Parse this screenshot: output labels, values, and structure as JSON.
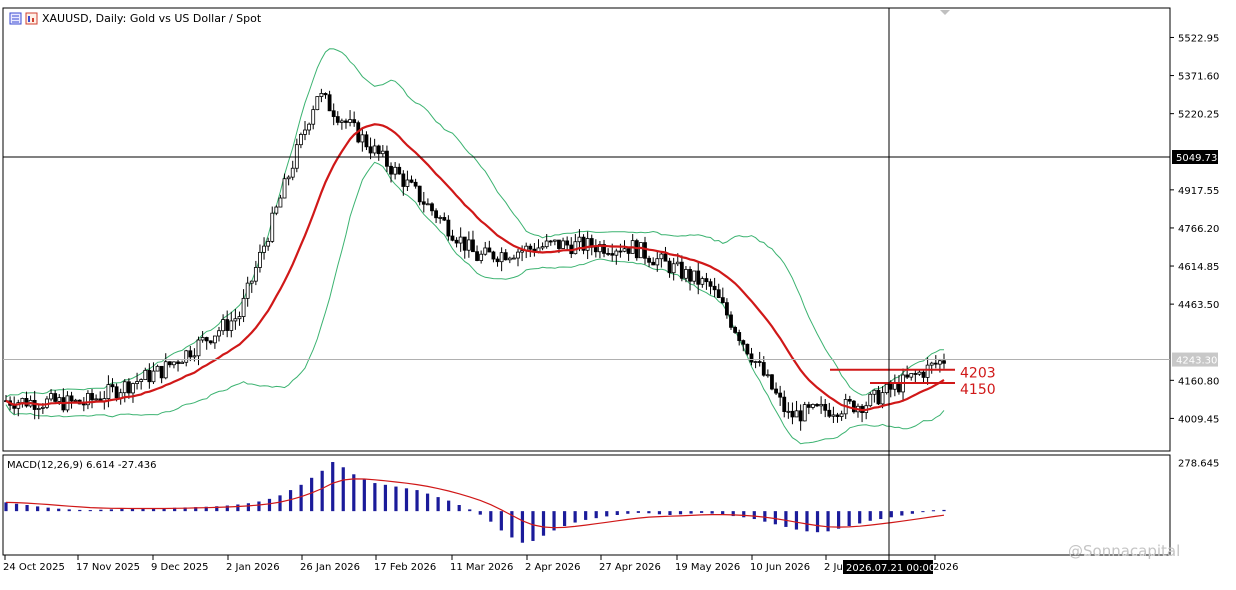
{
  "header": {
    "title": "XAUUSD, Daily:  Gold vs US Dollar / Spot",
    "icon": "chart-window-icon"
  },
  "crosshair": {
    "price_label": "5049.73",
    "date_label": "2026.07.21 00:00"
  },
  "watermark": "@Sonnacapital",
  "colors": {
    "candle": "#000000",
    "bollinger": "#3cb371",
    "moving_average": "#d01818",
    "level_lines": "#d01818",
    "macd_histogram": "#1b1b9a",
    "macd_signal": "#d01818",
    "current_price_line": "#b0b0b0"
  },
  "chart_data": [
    {
      "type": "candlestick",
      "title": "XAUUSD, Daily:  Gold vs US Dollar / Spot",
      "symbol": "XAUUSD",
      "timeframe": "Daily",
      "y_ticks": [
        5522.95,
        5371.6,
        5220.25,
        4917.55,
        4766.2,
        4614.85,
        4463.5,
        4160.8,
        4009.45
      ],
      "ylim": [
        3880,
        5640
      ],
      "current_price": "4243.30",
      "x_ticks": [
        "24 Oct 2025",
        "17 Nov 2025",
        "9 Dec 2025",
        "2 Jan 2026",
        "26 Jan 2026",
        "17 Feb 2026",
        "11 Mar 2026",
        "2 Apr 2026",
        "27 Apr 2026",
        "19 May 2026",
        "10 Jun 2026",
        "2 Jul 2026",
        "2026"
      ],
      "levels": [
        {
          "label": "4203",
          "value": 4203
        },
        {
          "label": "4150",
          "value": 4150
        }
      ],
      "approx_closes": [
        {
          "date": "24 Oct 2025",
          "close": 4080
        },
        {
          "date": "17 Nov 2025",
          "close": 4070
        },
        {
          "date": "9 Dec 2025",
          "close": 4200
        },
        {
          "date": "2 Jan 2026",
          "close": 4420
        },
        {
          "date": "26 Jan 2026",
          "close": 5300
        },
        {
          "date": "17 Feb 2026",
          "close": 4990
        },
        {
          "date": "11 Mar 2026",
          "close": 4650
        },
        {
          "date": "2 Apr 2026",
          "close": 4700
        },
        {
          "date": "27 Apr 2026",
          "close": 4690
        },
        {
          "date": "19 May 2026",
          "close": 4530
        },
        {
          "date": "10 Jun 2026",
          "close": 4020
        },
        {
          "date": "2 Jul 2026",
          "close": 4070
        },
        {
          "date": "2026",
          "close": 4243
        }
      ],
      "overlays": [
        "Bollinger Bands",
        "Moving Average"
      ]
    },
    {
      "type": "bar",
      "title": "MACD(12,26,9) 6.614 -27.436",
      "y_ticks": [
        278.645
      ],
      "ylim": [
        -250,
        320
      ],
      "series": [
        {
          "name": "MACD",
          "values": [
            50,
            42,
            35,
            27,
            20,
            14,
            10,
            7,
            6,
            8,
            10,
            12,
            13,
            14,
            15,
            17,
            19,
            21,
            23,
            25,
            28,
            32,
            38,
            45,
            55,
            70,
            90,
            120,
            150,
            190,
            230,
            280,
            250,
            210,
            180,
            160,
            150,
            140,
            130,
            120,
            100,
            80,
            60,
            35,
            10,
            -20,
            -60,
            -110,
            -150,
            -180,
            -170,
            -140,
            -110,
            -85,
            -65,
            -50,
            -40,
            -30,
            -22,
            -15,
            -10,
            -12,
            -18,
            -22,
            -18,
            -14,
            -10,
            -14,
            -20,
            -28,
            -35,
            -45,
            -60,
            -75,
            -90,
            -105,
            -115,
            -120,
            -115,
            -100,
            -85,
            -70,
            -55,
            -45,
            -35,
            -25,
            -15,
            -5,
            5,
            7
          ]
        }
      ]
    }
  ]
}
